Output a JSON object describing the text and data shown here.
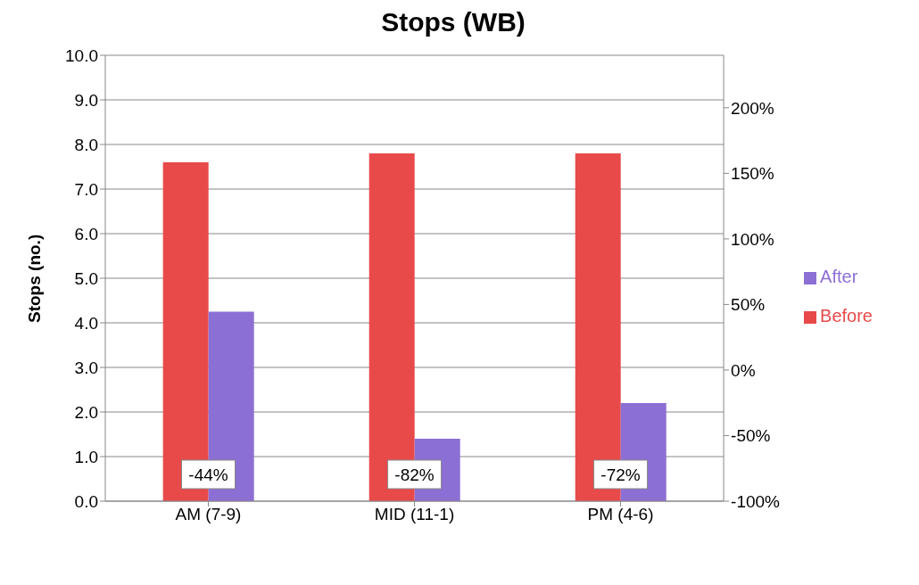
{
  "chart_data": {
    "type": "bar",
    "title": "Stops (WB)",
    "ylabel": "Stops (no.)",
    "categories": [
      "AM (7-9)",
      "MID (11-1)",
      "PM (4-6)"
    ],
    "series": [
      {
        "name": "Before",
        "color": "#e84a4a",
        "values": [
          7.6,
          7.8,
          7.8
        ]
      },
      {
        "name": "After",
        "color": "#8c6fd4",
        "values": [
          4.25,
          1.4,
          2.2
        ]
      }
    ],
    "ylim": [
      0,
      10
    ],
    "yticks": [
      {
        "value": 0,
        "label": "0.0"
      },
      {
        "value": 1,
        "label": "1.0"
      },
      {
        "value": 2,
        "label": "2.0"
      },
      {
        "value": 3,
        "label": "3.0"
      },
      {
        "value": 4,
        "label": "4.0"
      },
      {
        "value": 5,
        "label": "5.0"
      },
      {
        "value": 6,
        "label": "6.0"
      },
      {
        "value": 7,
        "label": "7.0"
      },
      {
        "value": 8,
        "label": "8.0"
      },
      {
        "value": 9,
        "label": "9.0"
      },
      {
        "value": 10,
        "label": "10.0"
      }
    ],
    "y2lim": [
      -100,
      240
    ],
    "y2ticks": [
      {
        "value": -100,
        "label": "-100%"
      },
      {
        "value": -50,
        "label": "-50%"
      },
      {
        "value": 0,
        "label": "0%"
      },
      {
        "value": 50,
        "label": "50%"
      },
      {
        "value": 100,
        "label": "100%"
      },
      {
        "value": 150,
        "label": "150%"
      },
      {
        "value": 200,
        "label": "200%"
      }
    ],
    "annotations": [
      {
        "text": "-44%",
        "x": "AM (7-9)",
        "y": 0.6
      },
      {
        "text": "-82%",
        "x": "MID (11-1)",
        "y": 0.6
      },
      {
        "text": "-72%",
        "x": "PM (4-6)",
        "y": 0.6
      }
    ],
    "grid": "y",
    "legend": "right"
  }
}
